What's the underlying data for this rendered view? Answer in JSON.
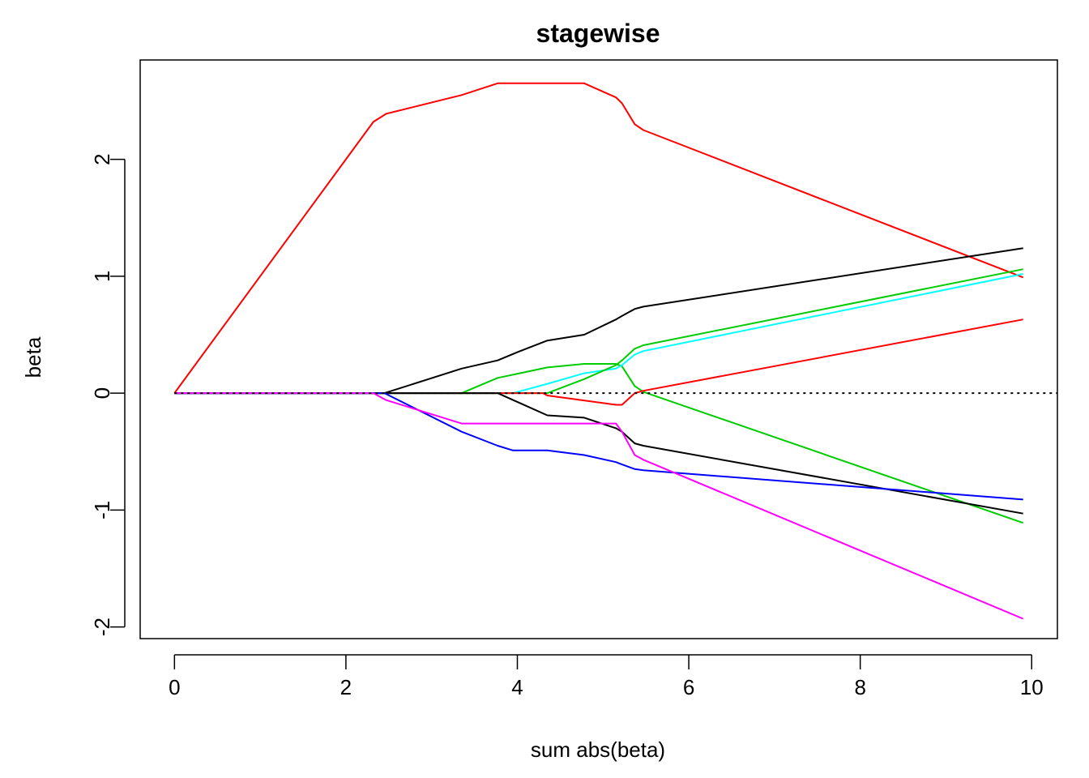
{
  "chart_data": {
    "type": "line",
    "title": "stagewise",
    "xlabel": "sum abs(beta)",
    "ylabel": "beta",
    "xlim": [
      -0.4,
      10.3
    ],
    "ylim": [
      -2.1,
      2.85
    ],
    "x_ticks": [
      0,
      2,
      4,
      6,
      8,
      10
    ],
    "y_ticks": [
      -2,
      -1,
      0,
      1,
      2
    ],
    "x_tick_labels": [
      "0",
      "2",
      "4",
      "6",
      "8",
      "10"
    ],
    "y_tick_labels": [
      "-2",
      "-1",
      "0",
      "1",
      "2"
    ],
    "grid": false,
    "legend": "none",
    "reference_line": {
      "y": 0,
      "style": "dotted",
      "color": "#000000"
    },
    "series": [
      {
        "color": "#ff0000",
        "points": [
          [
            0,
            0
          ],
          [
            2.32,
            2.32
          ],
          [
            2.47,
            2.39
          ],
          [
            3.35,
            2.55
          ],
          [
            3.77,
            2.65
          ],
          [
            4.78,
            2.65
          ],
          [
            5.15,
            2.53
          ],
          [
            5.22,
            2.48
          ],
          [
            5.37,
            2.3
          ],
          [
            5.47,
            2.25
          ],
          [
            9.9,
            0.99
          ]
        ]
      },
      {
        "color": "#000000",
        "points": [
          [
            0,
            0
          ],
          [
            2.45,
            0
          ],
          [
            3.35,
            0.21
          ],
          [
            3.77,
            0.28
          ],
          [
            4.0,
            0.35
          ],
          [
            4.35,
            0.45
          ],
          [
            4.78,
            0.5
          ],
          [
            5.15,
            0.63
          ],
          [
            5.22,
            0.66
          ],
          [
            5.37,
            0.72
          ],
          [
            5.47,
            0.74
          ],
          [
            9.9,
            1.24
          ]
        ]
      },
      {
        "color": "#00cd00",
        "points": [
          [
            0,
            0
          ],
          [
            3.35,
            0
          ],
          [
            3.77,
            0.13
          ],
          [
            4.35,
            0.22
          ],
          [
            4.78,
            0.25
          ],
          [
            5.15,
            0.25
          ],
          [
            5.22,
            0.23
          ],
          [
            5.37,
            0.06
          ],
          [
            5.47,
            0.01
          ],
          [
            9.9,
            -1.11
          ]
        ]
      },
      {
        "color": "#00ffff",
        "points": [
          [
            0,
            0
          ],
          [
            3.95,
            0
          ],
          [
            4.35,
            0.08
          ],
          [
            4.78,
            0.17
          ],
          [
            5.15,
            0.21
          ],
          [
            5.22,
            0.24
          ],
          [
            5.37,
            0.33
          ],
          [
            5.47,
            0.36
          ],
          [
            9.9,
            1.02
          ]
        ]
      },
      {
        "color": "#00cd00",
        "points": [
          [
            0,
            0
          ],
          [
            4.35,
            0
          ],
          [
            4.78,
            0.12
          ],
          [
            5.15,
            0.24
          ],
          [
            5.22,
            0.28
          ],
          [
            5.37,
            0.38
          ],
          [
            5.47,
            0.41
          ],
          [
            9.9,
            1.06
          ]
        ]
      },
      {
        "color": "#ff0000",
        "points": [
          [
            0,
            0
          ],
          [
            4.3,
            0
          ],
          [
            4.35,
            -0.02
          ],
          [
            5.15,
            -0.1
          ],
          [
            5.22,
            -0.1
          ],
          [
            5.37,
            0.0
          ],
          [
            5.47,
            0.02
          ],
          [
            9.9,
            0.63
          ]
        ]
      },
      {
        "color": "#000000",
        "points": [
          [
            0,
            0
          ],
          [
            3.77,
            0
          ],
          [
            4.35,
            -0.19
          ],
          [
            4.78,
            -0.21
          ],
          [
            5.15,
            -0.3
          ],
          [
            5.22,
            -0.33
          ],
          [
            5.37,
            -0.43
          ],
          [
            5.47,
            -0.45
          ],
          [
            9.9,
            -1.03
          ]
        ]
      },
      {
        "color": "#0000ff",
        "points": [
          [
            0,
            0
          ],
          [
            2.45,
            0
          ],
          [
            3.35,
            -0.33
          ],
          [
            3.77,
            -0.45
          ],
          [
            3.95,
            -0.49
          ],
          [
            4.35,
            -0.49
          ],
          [
            4.78,
            -0.53
          ],
          [
            5.15,
            -0.59
          ],
          [
            5.22,
            -0.61
          ],
          [
            5.37,
            -0.65
          ],
          [
            5.47,
            -0.66
          ],
          [
            9.9,
            -0.91
          ]
        ]
      },
      {
        "color": "#ff00ff",
        "points": [
          [
            0,
            0
          ],
          [
            2.32,
            0
          ],
          [
            2.47,
            -0.06
          ],
          [
            3.35,
            -0.26
          ],
          [
            3.77,
            -0.26
          ],
          [
            4.78,
            -0.26
          ],
          [
            5.15,
            -0.26
          ],
          [
            5.22,
            -0.33
          ],
          [
            5.37,
            -0.53
          ],
          [
            5.47,
            -0.57
          ],
          [
            9.9,
            -1.93
          ]
        ]
      }
    ]
  }
}
